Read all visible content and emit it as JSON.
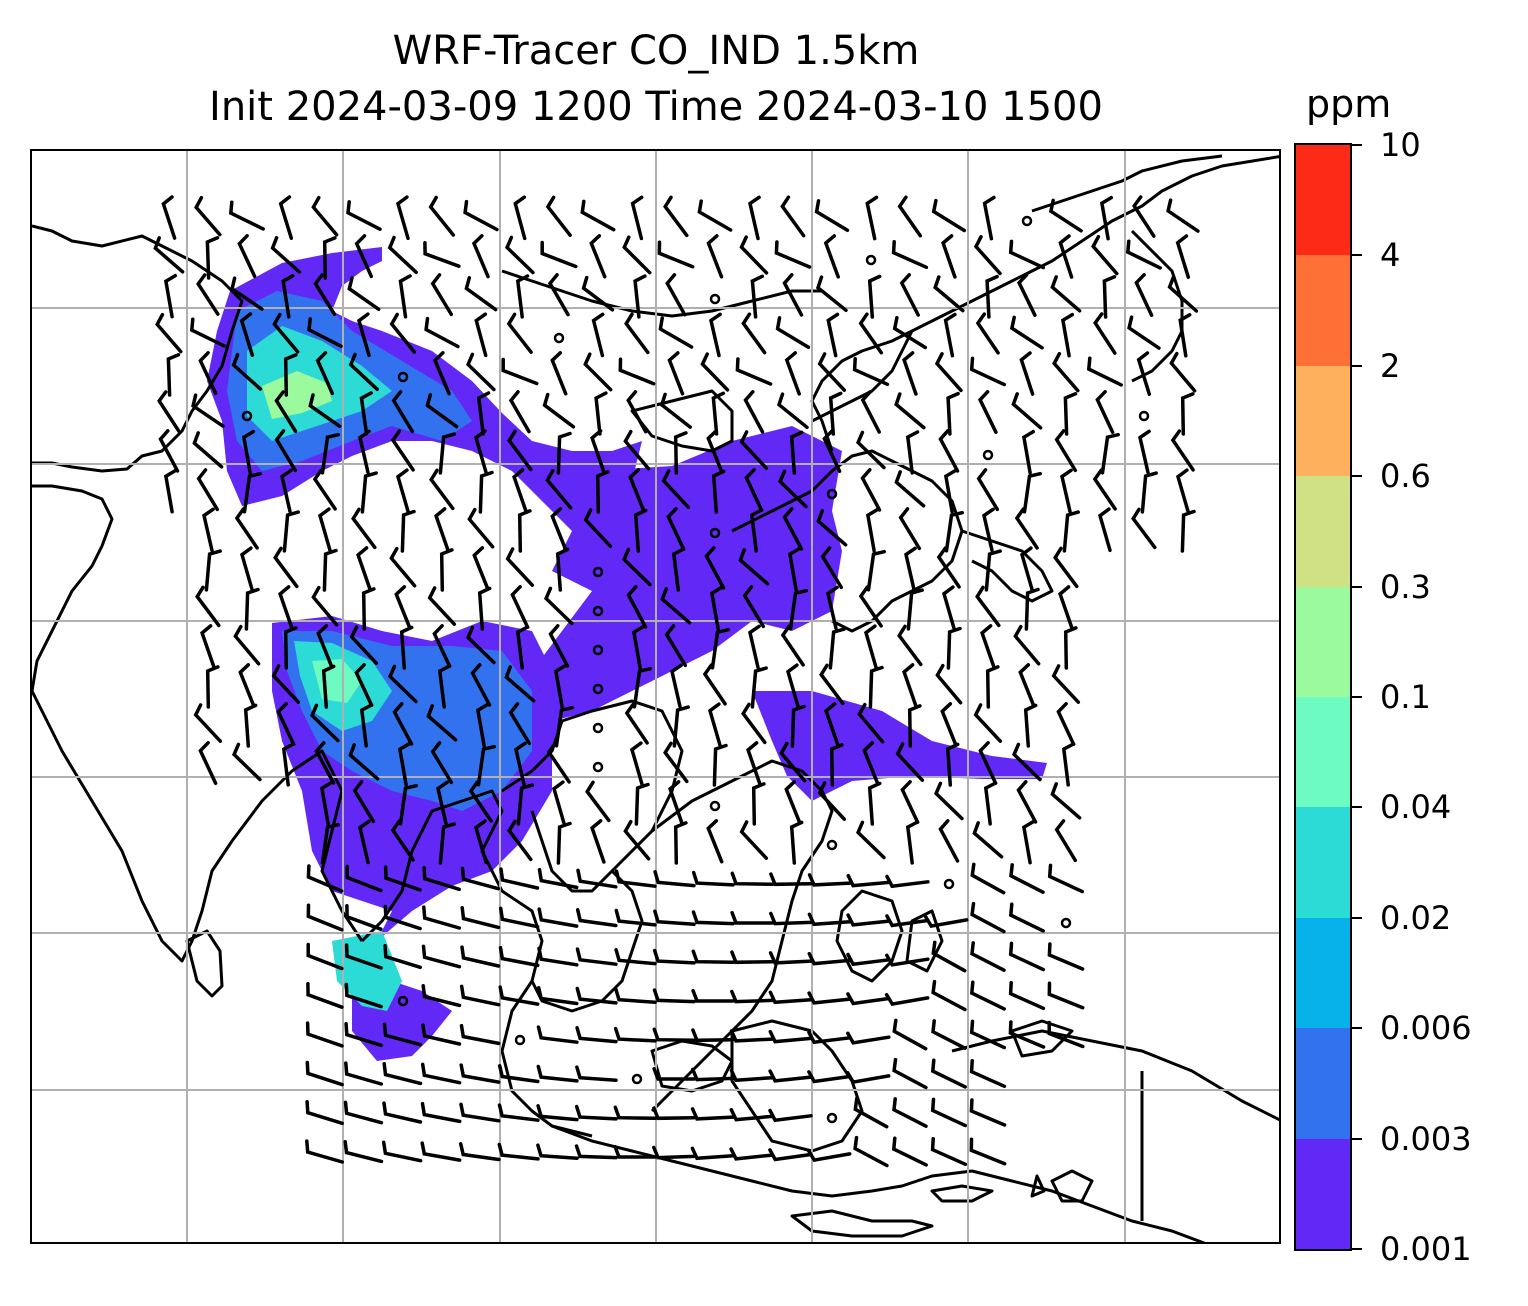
{
  "title_line1": "WRF-Tracer CO_IND 1.5km",
  "title_line2": "Init 2024-03-09 1200 Time 2024-03-10 1500",
  "colorbar": {
    "unit": "ppm",
    "tick_labels": [
      "0.001",
      "0.003",
      "0.006",
      "0.02",
      "0.04",
      "0.1",
      "0.3",
      "0.6",
      "2",
      "4",
      "10"
    ],
    "colors": [
      "#6228f5",
      "#3272ee",
      "#07b2ea",
      "#2cdad6",
      "#6dfbc1",
      "#9bfa9e",
      "#d0e084",
      "#feb05d",
      "#fe7035",
      "#fe2a18"
    ]
  },
  "map": {
    "layers": [
      "CO_IND tracer concentration (filled contours)",
      "wind barbs",
      "coastlines",
      "graticule"
    ],
    "gridlines": true
  }
}
